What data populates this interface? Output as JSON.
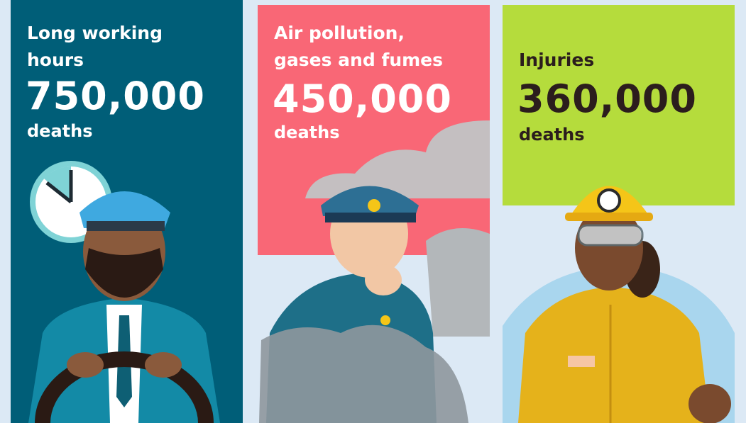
{
  "panels": [
    {
      "label": "Long working hours",
      "value": "750,000",
      "unit": "deaths"
    },
    {
      "label": "Air pollution, gases and fumes",
      "value": "450,000",
      "unit": "deaths"
    },
    {
      "label": "Injuries",
      "value": "360,000",
      "unit": "deaths"
    }
  ]
}
